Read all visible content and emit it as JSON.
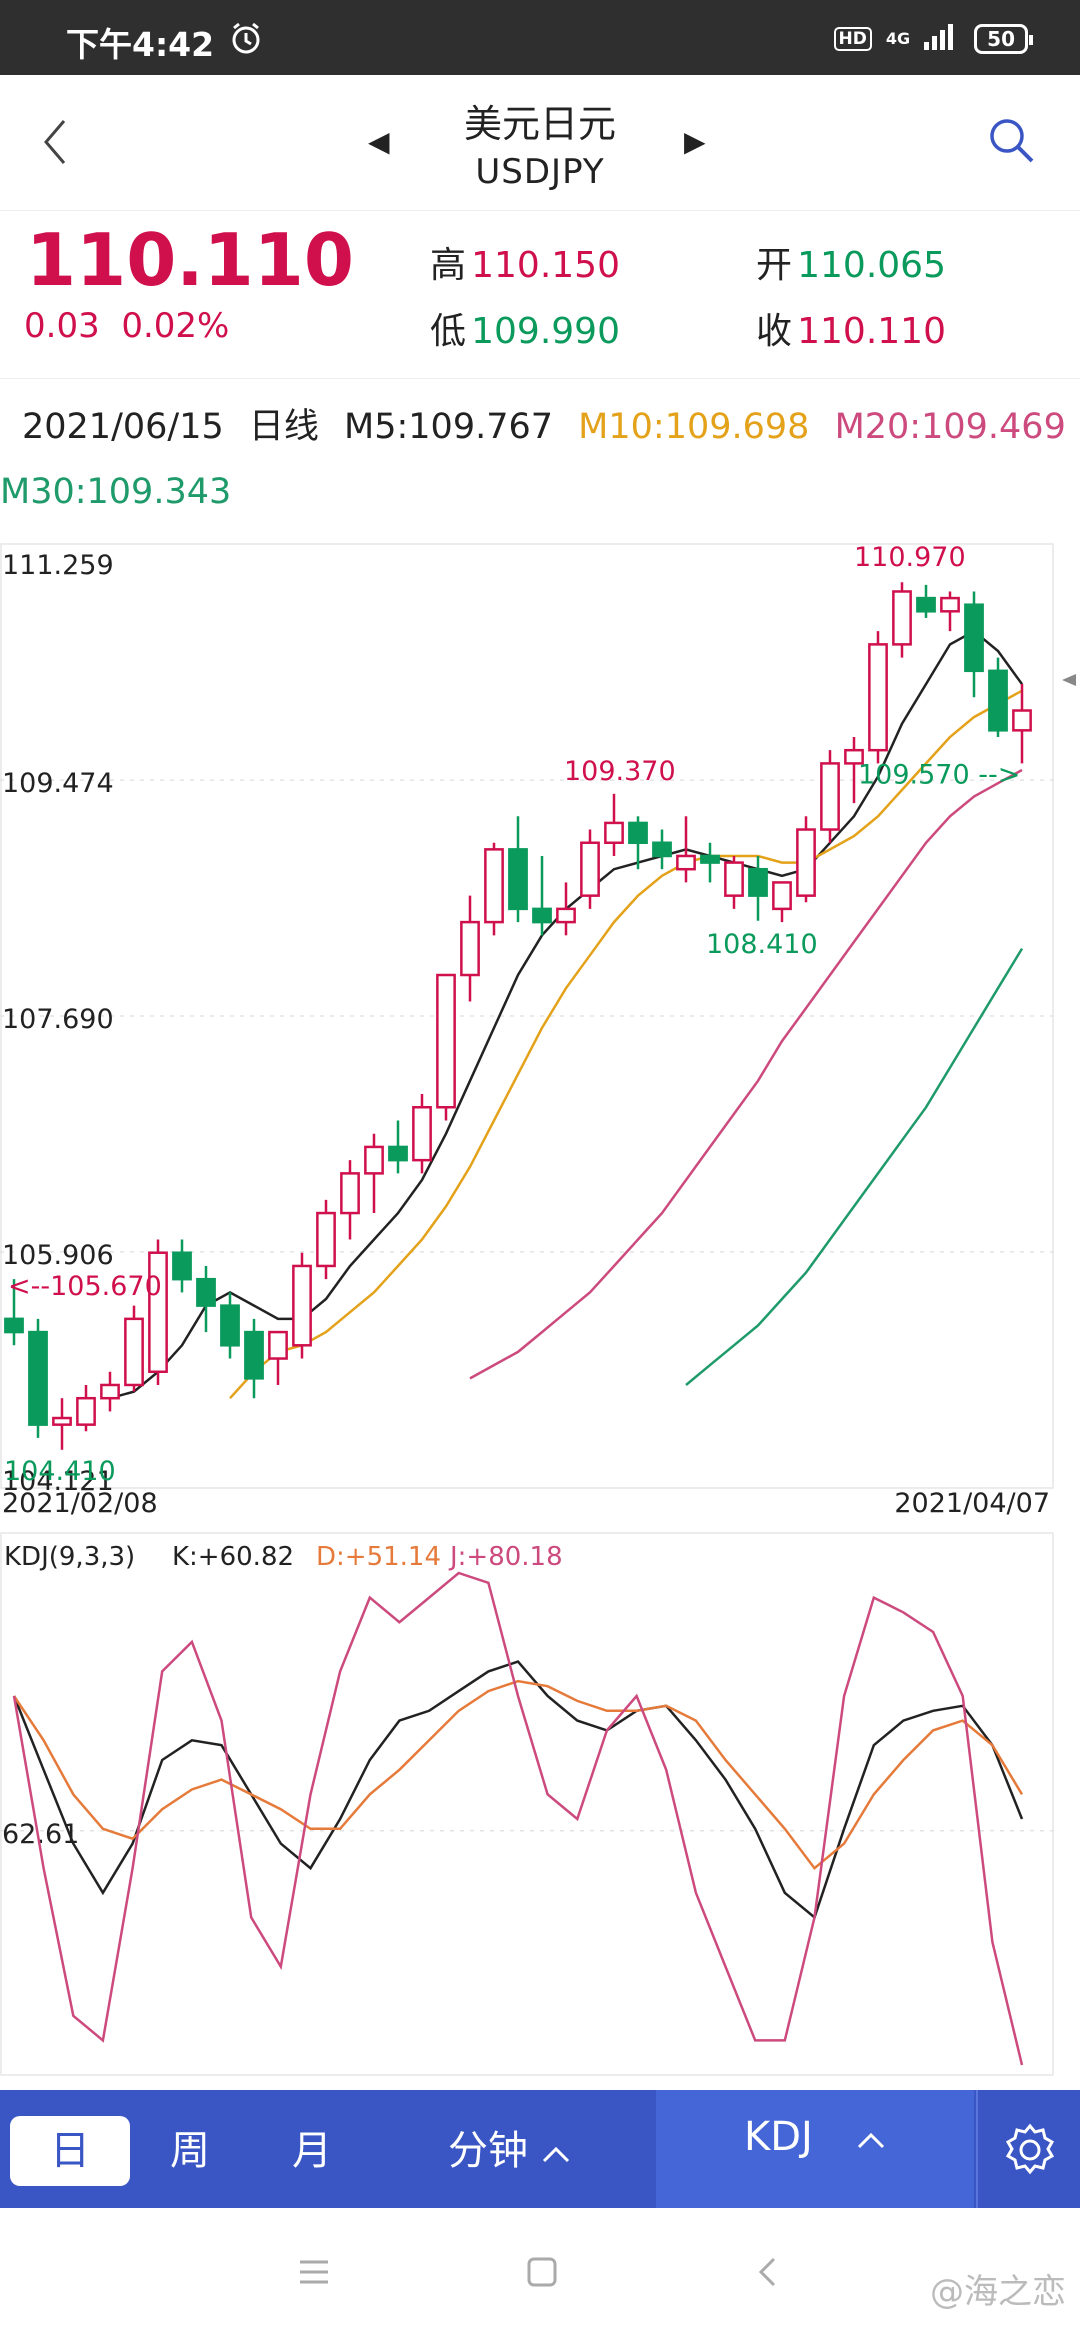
{
  "status": {
    "time": "下午4:42",
    "hd": "HD",
    "net": "4G",
    "battery": "50"
  },
  "header": {
    "title_cn": "美元日元",
    "title_en": "USDJPY"
  },
  "quote": {
    "price": "110.110",
    "change": "0.03",
    "change_pct": "0.02%",
    "high_label": "高",
    "high": "110.150",
    "low_label": "低",
    "low": "109.990",
    "open_label": "开",
    "open": "110.065",
    "close_label": "收",
    "close": "110.110"
  },
  "ma": {
    "date": "2021/06/15",
    "period": "日线",
    "m5": "M5:109.767",
    "m10": "M10:109.698",
    "m20": "M20:109.469",
    "m30": "M30:109.343"
  },
  "colors": {
    "red": "#d0104c",
    "green": "#0a9a5c",
    "m5": "#222222",
    "m10": "#e3a21a",
    "m20": "#cc4a7d",
    "m30": "#1f9a6a",
    "kdj_k": "#222222",
    "kdj_d": "#e57a3a",
    "kdj_j": "#cc4a7d",
    "tabbar": "#3a56c5"
  },
  "chart_data": [
    {
      "type": "candlestick",
      "ylim": [
        104.121,
        111.259
      ],
      "y_ticks": [
        "111.259",
        "109.474",
        "107.690",
        "105.906",
        "104.121"
      ],
      "x_start": "2021/02/08",
      "x_end": "2021/04/07",
      "annotations": {
        "high": "110.970",
        "mid_high": "109.370",
        "mid_low": "108.410",
        "last": "109.570",
        "left": "105.670",
        "low": "104.410"
      },
      "candles": [
        {
          "o": 105.4,
          "h": 105.7,
          "l": 105.2,
          "c": 105.3
        },
        {
          "o": 105.3,
          "h": 105.4,
          "l": 104.5,
          "c": 104.6
        },
        {
          "o": 104.6,
          "h": 104.8,
          "l": 104.41,
          "c": 104.65
        },
        {
          "o": 104.6,
          "h": 104.9,
          "l": 104.55,
          "c": 104.8
        },
        {
          "o": 104.8,
          "h": 105.0,
          "l": 104.7,
          "c": 104.9
        },
        {
          "o": 104.9,
          "h": 105.5,
          "l": 104.85,
          "c": 105.4
        },
        {
          "o": 105.0,
          "h": 106.0,
          "l": 104.9,
          "c": 105.9
        },
        {
          "o": 105.9,
          "h": 106.0,
          "l": 105.6,
          "c": 105.7
        },
        {
          "o": 105.7,
          "h": 105.8,
          "l": 105.3,
          "c": 105.5
        },
        {
          "o": 105.5,
          "h": 105.6,
          "l": 105.1,
          "c": 105.2
        },
        {
          "o": 105.3,
          "h": 105.4,
          "l": 104.8,
          "c": 104.95
        },
        {
          "o": 105.1,
          "h": 105.3,
          "l": 104.9,
          "c": 105.3
        },
        {
          "o": 105.2,
          "h": 105.9,
          "l": 105.1,
          "c": 105.8
        },
        {
          "o": 105.8,
          "h": 106.3,
          "l": 105.7,
          "c": 106.2
        },
        {
          "o": 106.2,
          "h": 106.6,
          "l": 106.0,
          "c": 106.5
        },
        {
          "o": 106.5,
          "h": 106.8,
          "l": 106.2,
          "c": 106.7
        },
        {
          "o": 106.7,
          "h": 106.9,
          "l": 106.5,
          "c": 106.6
        },
        {
          "o": 106.6,
          "h": 107.1,
          "l": 106.5,
          "c": 107.0
        },
        {
          "o": 107.0,
          "h": 108.0,
          "l": 106.9,
          "c": 108.0
        },
        {
          "o": 108.0,
          "h": 108.6,
          "l": 107.8,
          "c": 108.4
        },
        {
          "o": 108.4,
          "h": 109.0,
          "l": 108.3,
          "c": 108.95
        },
        {
          "o": 108.95,
          "h": 109.2,
          "l": 108.4,
          "c": 108.5
        },
        {
          "o": 108.5,
          "h": 108.9,
          "l": 108.3,
          "c": 108.4
        },
        {
          "o": 108.4,
          "h": 108.7,
          "l": 108.3,
          "c": 108.5
        },
        {
          "o": 108.6,
          "h": 109.1,
          "l": 108.5,
          "c": 109.0
        },
        {
          "o": 109.0,
          "h": 109.37,
          "l": 108.9,
          "c": 109.15
        },
        {
          "o": 109.15,
          "h": 109.2,
          "l": 108.8,
          "c": 109.0
        },
        {
          "o": 109.0,
          "h": 109.1,
          "l": 108.8,
          "c": 108.9
        },
        {
          "o": 108.8,
          "h": 109.2,
          "l": 108.7,
          "c": 108.9
        },
        {
          "o": 108.9,
          "h": 109.0,
          "l": 108.7,
          "c": 108.85
        },
        {
          "o": 108.6,
          "h": 108.9,
          "l": 108.5,
          "c": 108.85
        },
        {
          "o": 108.8,
          "h": 108.9,
          "l": 108.41,
          "c": 108.6
        },
        {
          "o": 108.5,
          "h": 108.7,
          "l": 108.4,
          "c": 108.7
        },
        {
          "o": 108.6,
          "h": 109.2,
          "l": 108.55,
          "c": 109.1
        },
        {
          "o": 109.1,
          "h": 109.7,
          "l": 109.0,
          "c": 109.6
        },
        {
          "o": 109.6,
          "h": 109.8,
          "l": 109.3,
          "c": 109.7
        },
        {
          "o": 109.7,
          "h": 110.6,
          "l": 109.6,
          "c": 110.5
        },
        {
          "o": 110.5,
          "h": 110.97,
          "l": 110.4,
          "c": 110.9
        },
        {
          "o": 110.85,
          "h": 110.95,
          "l": 110.7,
          "c": 110.75
        },
        {
          "o": 110.75,
          "h": 110.9,
          "l": 110.6,
          "c": 110.85
        },
        {
          "o": 110.8,
          "h": 110.9,
          "l": 110.1,
          "c": 110.3
        },
        {
          "o": 110.3,
          "h": 110.4,
          "l": 109.8,
          "c": 109.85
        },
        {
          "o": 109.85,
          "h": 110.2,
          "l": 109.6,
          "c": 110.0
        }
      ],
      "series": [
        {
          "name": "M5",
          "values": [
            null,
            null,
            null,
            null,
            104.8,
            104.85,
            105.0,
            105.2,
            105.5,
            105.6,
            105.5,
            105.4,
            105.4,
            105.55,
            105.8,
            106.0,
            106.2,
            106.45,
            106.8,
            107.2,
            107.6,
            108.0,
            108.3,
            108.5,
            108.65,
            108.8,
            108.85,
            108.9,
            108.95,
            108.9,
            108.85,
            108.8,
            108.75,
            108.8,
            109.0,
            109.2,
            109.5,
            109.9,
            110.2,
            110.5,
            110.6,
            110.45,
            110.2
          ]
        },
        {
          "name": "M10",
          "values": [
            null,
            null,
            null,
            null,
            null,
            null,
            null,
            null,
            null,
            104.8,
            105.0,
            105.15,
            105.2,
            105.3,
            105.45,
            105.6,
            105.8,
            106.0,
            106.25,
            106.55,
            106.9,
            107.25,
            107.6,
            107.9,
            108.15,
            108.4,
            108.6,
            108.75,
            108.85,
            108.9,
            108.9,
            108.9,
            108.85,
            108.85,
            108.95,
            109.05,
            109.2,
            109.4,
            109.6,
            109.8,
            109.95,
            110.05,
            110.15
          ]
        },
        {
          "name": "M20",
          "values": [
            null,
            null,
            null,
            null,
            null,
            null,
            null,
            null,
            null,
            null,
            null,
            null,
            null,
            null,
            null,
            null,
            null,
            null,
            null,
            104.95,
            105.05,
            105.15,
            105.3,
            105.45,
            105.6,
            105.8,
            106.0,
            106.2,
            106.45,
            106.7,
            106.95,
            107.2,
            107.5,
            107.75,
            108.0,
            108.25,
            108.5,
            108.75,
            109.0,
            109.2,
            109.35,
            109.45,
            109.55
          ]
        },
        {
          "name": "M30",
          "values": [
            null,
            null,
            null,
            null,
            null,
            null,
            null,
            null,
            null,
            null,
            null,
            null,
            null,
            null,
            null,
            null,
            null,
            null,
            null,
            null,
            null,
            null,
            null,
            null,
            null,
            null,
            null,
            null,
            104.9,
            105.05,
            105.2,
            105.35,
            105.55,
            105.75,
            106.0,
            106.25,
            106.5,
            106.75,
            107.0,
            107.3,
            107.6,
            107.9,
            108.2
          ]
        }
      ]
    },
    {
      "type": "line",
      "title": "KDJ(9,3,3)",
      "k_label": "K:+60.82",
      "d_label": "D:+51.14",
      "j_label": "J:+80.18",
      "y_tick": "62.61",
      "ylim": [
        0,
        100
      ],
      "series": [
        {
          "name": "K",
          "values": [
            75,
            60,
            45,
            35,
            45,
            62,
            66,
            65,
            55,
            45,
            40,
            50,
            62,
            70,
            72,
            76,
            80,
            82,
            75,
            70,
            68,
            72,
            73,
            66,
            58,
            48,
            35,
            30,
            48,
            65,
            70,
            72,
            73,
            65,
            50
          ]
        },
        {
          "name": "D",
          "values": [
            75,
            66,
            55,
            48,
            46,
            52,
            56,
            58,
            55,
            52,
            48,
            48,
            55,
            60,
            66,
            72,
            76,
            78,
            77,
            74,
            72,
            72,
            73,
            70,
            62,
            55,
            48,
            40,
            45,
            55,
            62,
            68,
            70,
            65,
            55
          ]
        },
        {
          "name": "J",
          "values": [
            75,
            40,
            10,
            5,
            40,
            80,
            86,
            70,
            30,
            20,
            55,
            80,
            95,
            90,
            95,
            100,
            98,
            75,
            55,
            50,
            68,
            75,
            60,
            35,
            20,
            5,
            5,
            30,
            75,
            95,
            92,
            88,
            75,
            25,
            0
          ]
        }
      ]
    }
  ],
  "tabs": {
    "day": "日",
    "week": "周",
    "month": "月",
    "minute": "分钟",
    "indicator": "KDJ"
  },
  "watermark": "@海之恋",
  "icons": {
    "back": "chevron-left-icon",
    "prev": "triangle-left-icon",
    "next": "triangle-right-icon",
    "search": "search-icon",
    "alarm": "alarm-icon",
    "gear": "gear-icon"
  }
}
